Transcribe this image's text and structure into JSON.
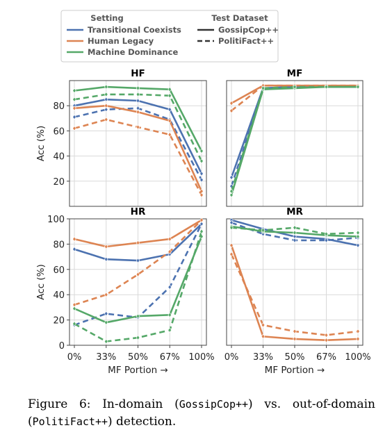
{
  "legend": {
    "setting_title": "Setting",
    "dataset_title": "Test Dataset",
    "settings": [
      {
        "name": "Transitional Coexists",
        "color": "#4c72b0"
      },
      {
        "name": "Human Legacy",
        "color": "#dd8452"
      },
      {
        "name": "Machine Dominance",
        "color": "#55a868"
      }
    ],
    "datasets": [
      {
        "name": "GossipCop++",
        "style": "solid"
      },
      {
        "name": "PolitiFact++",
        "style": "dashed"
      }
    ]
  },
  "caption": {
    "prefix": "Figure 6:  In-domain (",
    "in_domain": "GossipCop++",
    "middle": ") vs.  out-of-domain (",
    "out_domain": "PolitiFact++",
    "suffix": ") detection."
  },
  "chart_data": [
    {
      "type": "line",
      "title": "HF",
      "ylabel": "Acc (%)",
      "xlabel": "",
      "categories": [
        "0%",
        "33%",
        "50%",
        "67%",
        "100%"
      ],
      "ylim": [
        0,
        100
      ],
      "yticks": [
        20,
        40,
        60,
        80
      ],
      "grid": true,
      "series": [
        {
          "name": "Transitional Coexists",
          "dataset": "GossipCop++",
          "color": "#4c72b0",
          "style": "solid",
          "values": [
            80,
            85,
            84,
            77,
            26
          ]
        },
        {
          "name": "Transitional Coexists",
          "dataset": "PolitiFact++",
          "color": "#4c72b0",
          "style": "dashed",
          "values": [
            71,
            77,
            78,
            69,
            21
          ]
        },
        {
          "name": "Human Legacy",
          "dataset": "GossipCop++",
          "color": "#dd8452",
          "style": "solid",
          "values": [
            78,
            80,
            75,
            68,
            12
          ]
        },
        {
          "name": "Human Legacy",
          "dataset": "PolitiFact++",
          "color": "#dd8452",
          "style": "dashed",
          "values": [
            62,
            69,
            63,
            57,
            9
          ]
        },
        {
          "name": "Machine Dominance",
          "dataset": "GossipCop++",
          "color": "#55a868",
          "style": "solid",
          "values": [
            92,
            95,
            94,
            93,
            44
          ]
        },
        {
          "name": "Machine Dominance",
          "dataset": "PolitiFact++",
          "color": "#55a868",
          "style": "dashed",
          "values": [
            85,
            89,
            89,
            88,
            36
          ]
        }
      ]
    },
    {
      "type": "line",
      "title": "MF",
      "ylabel": "",
      "xlabel": "",
      "categories": [
        "0%",
        "33%",
        "50%",
        "67%",
        "100%"
      ],
      "ylim": [
        0,
        100
      ],
      "yticks": [],
      "grid": true,
      "series": [
        {
          "name": "Transitional Coexists",
          "dataset": "GossipCop++",
          "color": "#4c72b0",
          "style": "solid",
          "values": [
            23,
            94,
            95,
            95,
            95
          ]
        },
        {
          "name": "Transitional Coexists",
          "dataset": "PolitiFact++",
          "color": "#4c72b0",
          "style": "dashed",
          "values": [
            16,
            93,
            95,
            95,
            95
          ]
        },
        {
          "name": "Human Legacy",
          "dataset": "GossipCop++",
          "color": "#dd8452",
          "style": "solid",
          "values": [
            82,
            96,
            96,
            96,
            96
          ]
        },
        {
          "name": "Human Legacy",
          "dataset": "PolitiFact++",
          "color": "#dd8452",
          "style": "dashed",
          "values": [
            76,
            96,
            96,
            96,
            96
          ]
        },
        {
          "name": "Machine Dominance",
          "dataset": "GossipCop++",
          "color": "#55a868",
          "style": "solid",
          "values": [
            9,
            93,
            94,
            95,
            95
          ]
        },
        {
          "name": "Machine Dominance",
          "dataset": "PolitiFact++",
          "color": "#55a868",
          "style": "dashed",
          "values": [
            12,
            94,
            95,
            95,
            95
          ]
        }
      ]
    },
    {
      "type": "line",
      "title": "HR",
      "ylabel": "Acc (%)",
      "xlabel": "MF Portion →",
      "categories": [
        "0%",
        "33%",
        "50%",
        "67%",
        "100%"
      ],
      "ylim": [
        0,
        100
      ],
      "yticks": [
        0,
        20,
        40,
        60,
        80,
        100
      ],
      "grid": true,
      "series": [
        {
          "name": "Transitional Coexists",
          "dataset": "GossipCop++",
          "color": "#4c72b0",
          "style": "solid",
          "values": [
            76,
            68,
            67,
            72,
            96
          ]
        },
        {
          "name": "Transitional Coexists",
          "dataset": "PolitiFact++",
          "color": "#4c72b0",
          "style": "dashed",
          "values": [
            16,
            25,
            22,
            46,
            96
          ]
        },
        {
          "name": "Human Legacy",
          "dataset": "GossipCop++",
          "color": "#dd8452",
          "style": "solid",
          "values": [
            84,
            78,
            81,
            84,
            99
          ]
        },
        {
          "name": "Human Legacy",
          "dataset": "PolitiFact++",
          "color": "#dd8452",
          "style": "dashed",
          "values": [
            32,
            40,
            56,
            74,
            99
          ]
        },
        {
          "name": "Machine Dominance",
          "dataset": "GossipCop++",
          "color": "#55a868",
          "style": "solid",
          "values": [
            29,
            18,
            23,
            24,
            86
          ]
        },
        {
          "name": "Machine Dominance",
          "dataset": "PolitiFact++",
          "color": "#55a868",
          "style": "dashed",
          "values": [
            17,
            3,
            6,
            12,
            90
          ]
        }
      ]
    },
    {
      "type": "line",
      "title": "MR",
      "ylabel": "",
      "xlabel": "MF Portion →",
      "categories": [
        "0%",
        "33%",
        "50%",
        "67%",
        "100%"
      ],
      "ylim": [
        0,
        100
      ],
      "yticks": [],
      "grid": true,
      "series": [
        {
          "name": "Transitional Coexists",
          "dataset": "GossipCop++",
          "color": "#4c72b0",
          "style": "solid",
          "values": [
            99,
            92,
            86,
            84,
            79
          ]
        },
        {
          "name": "Transitional Coexists",
          "dataset": "PolitiFact++",
          "color": "#4c72b0",
          "style": "dashed",
          "values": [
            97,
            88,
            83,
            83,
            85
          ]
        },
        {
          "name": "Human Legacy",
          "dataset": "GossipCop++",
          "color": "#dd8452",
          "style": "solid",
          "values": [
            79,
            7,
            5,
            4,
            5
          ]
        },
        {
          "name": "Human Legacy",
          "dataset": "PolitiFact++",
          "color": "#dd8452",
          "style": "dashed",
          "values": [
            72,
            16,
            11,
            8,
            11
          ]
        },
        {
          "name": "Machine Dominance",
          "dataset": "GossipCop++",
          "color": "#55a868",
          "style": "solid",
          "values": [
            94,
            90,
            89,
            87,
            86
          ]
        },
        {
          "name": "Machine Dominance",
          "dataset": "PolitiFact++",
          "color": "#55a868",
          "style": "dashed",
          "values": [
            93,
            91,
            93,
            88,
            89
          ]
        }
      ]
    }
  ]
}
